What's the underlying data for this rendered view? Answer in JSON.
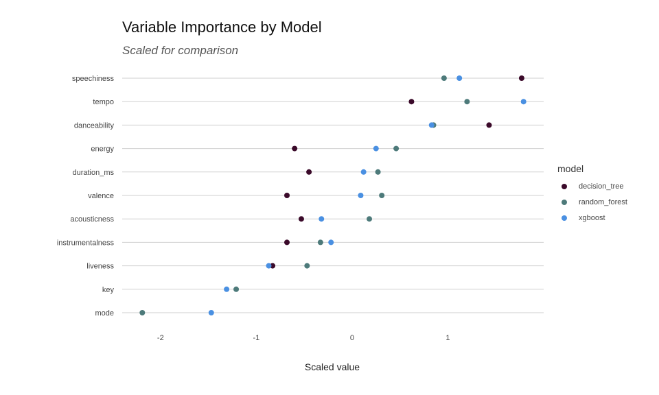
{
  "chart_data": {
    "type": "scatter",
    "title": "Variable Importance by Model",
    "subtitle": "Scaled for comparison",
    "xlabel": "Scaled value",
    "ylabel": "",
    "xlim": [
      -2.4,
      2.0
    ],
    "xticks": [
      -2,
      -1,
      0,
      1
    ],
    "xtick_labels": [
      "-2",
      "-1",
      "0",
      "1"
    ],
    "categories": [
      "speechiness",
      "tempo",
      "danceability",
      "energy",
      "duration_ms",
      "valence",
      "acousticness",
      "instrumentalness",
      "liveness",
      "key",
      "mode"
    ],
    "legend_title": "model",
    "legend_position": "right",
    "grid": "horizontal",
    "series": [
      {
        "name": "decision_tree",
        "color": "#3b0a2a",
        "values": [
          1.77,
          0.62,
          1.43,
          -0.6,
          -0.45,
          -0.68,
          -0.53,
          -0.68,
          -0.83,
          null,
          null
        ]
      },
      {
        "name": "random_forest",
        "color": "#4d7a7a",
        "values": [
          0.96,
          1.2,
          0.85,
          0.46,
          0.27,
          0.31,
          0.18,
          -0.33,
          -0.47,
          -1.21,
          -2.19
        ]
      },
      {
        "name": "xgboost",
        "color": "#4a90e2",
        "values": [
          1.12,
          1.79,
          0.83,
          0.25,
          0.12,
          0.09,
          -0.32,
          -0.22,
          -0.87,
          -1.31,
          -1.47
        ]
      }
    ]
  }
}
